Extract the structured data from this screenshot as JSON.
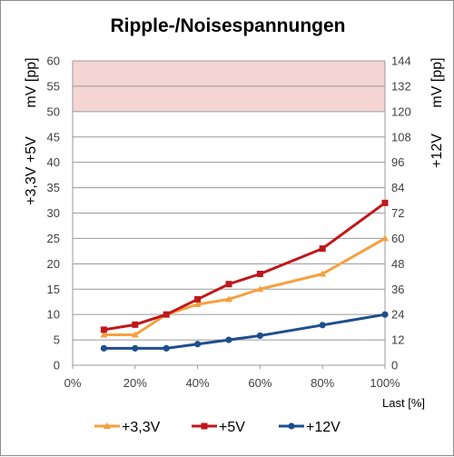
{
  "chart_data": {
    "type": "line",
    "title": "Ripple-/Noisespannungen",
    "xlabel": "Last [%]",
    "ylabel_left_top": "mV [pp]",
    "ylabel_left_bottom": "+3,3V +5V",
    "ylabel_right_top": "mV [pp]",
    "ylabel_right_bottom": "+12V",
    "x_ticks": [
      "0%",
      "20%",
      "40%",
      "60%",
      "80%",
      "100%"
    ],
    "xlim": [
      0,
      100
    ],
    "y_left_ticks": [
      "0",
      "5",
      "10",
      "15",
      "20",
      "25",
      "30",
      "35",
      "40",
      "45",
      "50",
      "55",
      "60"
    ],
    "ylim_left": [
      0,
      60
    ],
    "y_right_ticks": [
      "0",
      "12",
      "24",
      "36",
      "48",
      "60",
      "72",
      "84",
      "96",
      "108",
      "120",
      "132",
      "144"
    ],
    "ylim_right": [
      0,
      144
    ],
    "limit_band_left": [
      50,
      60
    ],
    "limit_band_color": "#f6d5d5",
    "grid": true,
    "legend_position": "bottom",
    "series": [
      {
        "name": "+3,3V",
        "axis": "left",
        "marker": "triangle",
        "color": "#f5a040",
        "x": [
          10,
          20,
          30,
          40,
          50,
          60,
          80,
          100
        ],
        "values": [
          6,
          6,
          10,
          12,
          13,
          15,
          18,
          25
        ]
      },
      {
        "name": "+5V",
        "axis": "left",
        "marker": "square",
        "color": "#c0171b",
        "x": [
          10,
          20,
          30,
          40,
          50,
          60,
          80,
          100
        ],
        "values": [
          7,
          8,
          10,
          13,
          16,
          18,
          23,
          32
        ]
      },
      {
        "name": "+12V",
        "axis": "right",
        "marker": "circle",
        "color": "#1f4e8c",
        "x": [
          10,
          20,
          30,
          40,
          50,
          60,
          80,
          100
        ],
        "values": [
          8,
          8,
          8,
          10,
          12,
          14,
          19,
          24
        ]
      }
    ]
  }
}
